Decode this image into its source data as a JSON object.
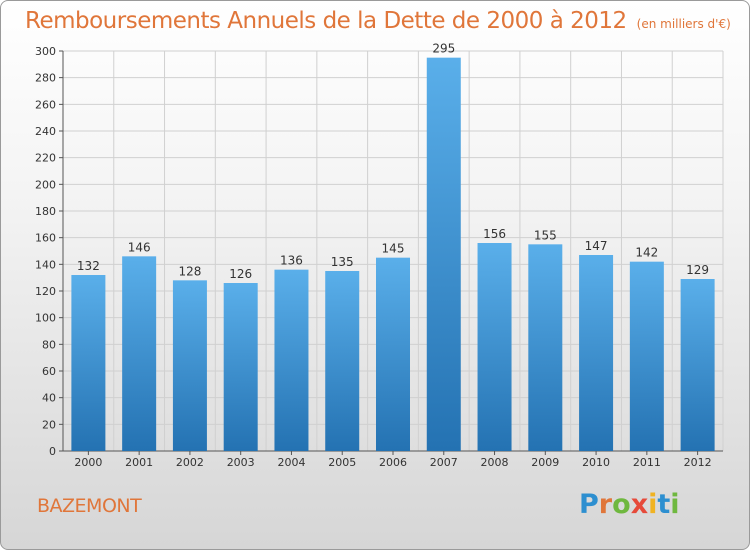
{
  "header": {
    "title": "Remboursements Annuels de la Dette de 2000 à 2012",
    "subtitle": "(en milliers d'€)"
  },
  "footer": {
    "town": "BAZEMONT",
    "logo_letters": [
      {
        "char": "P",
        "color": "#2d8fd0"
      },
      {
        "char": "r",
        "color": "#e0763a"
      },
      {
        "char": "o",
        "color": "#6fb83f"
      },
      {
        "char": "x",
        "color": "#e64a3a"
      },
      {
        "char": "i",
        "color": "#f0b323"
      },
      {
        "char": "t",
        "color": "#2d8fd0"
      },
      {
        "char": "i",
        "color": "#6fb83f"
      }
    ]
  },
  "chart_data": {
    "type": "bar",
    "title": "Remboursements Annuels de la Dette de 2000 à 2012",
    "subtitle": "(en milliers d'€)",
    "categories": [
      "2000",
      "2001",
      "2002",
      "2003",
      "2004",
      "2005",
      "2006",
      "2007",
      "2008",
      "2009",
      "2010",
      "2011",
      "2012"
    ],
    "values": [
      132,
      146,
      128,
      126,
      136,
      135,
      145,
      295,
      156,
      155,
      147,
      142,
      129
    ],
    "data_labels": [
      "132",
      "146",
      "128",
      "126",
      "136",
      "135",
      "145",
      "295",
      "156",
      "155",
      "147",
      "142",
      "129"
    ],
    "y_ticks": [
      "0",
      "20",
      "40",
      "60",
      "80",
      "100",
      "120",
      "140",
      "160",
      "180",
      "200",
      "220",
      "240",
      "260",
      "280",
      "300"
    ],
    "ylim": [
      0,
      300
    ],
    "xlabel": "",
    "ylabel": "",
    "grid": true,
    "colors": {
      "bar_top": "#5aafea",
      "bar_bottom": "#2472b2",
      "grid": "#d0d0d0",
      "text": "#333333",
      "title": "#e0763a"
    }
  }
}
